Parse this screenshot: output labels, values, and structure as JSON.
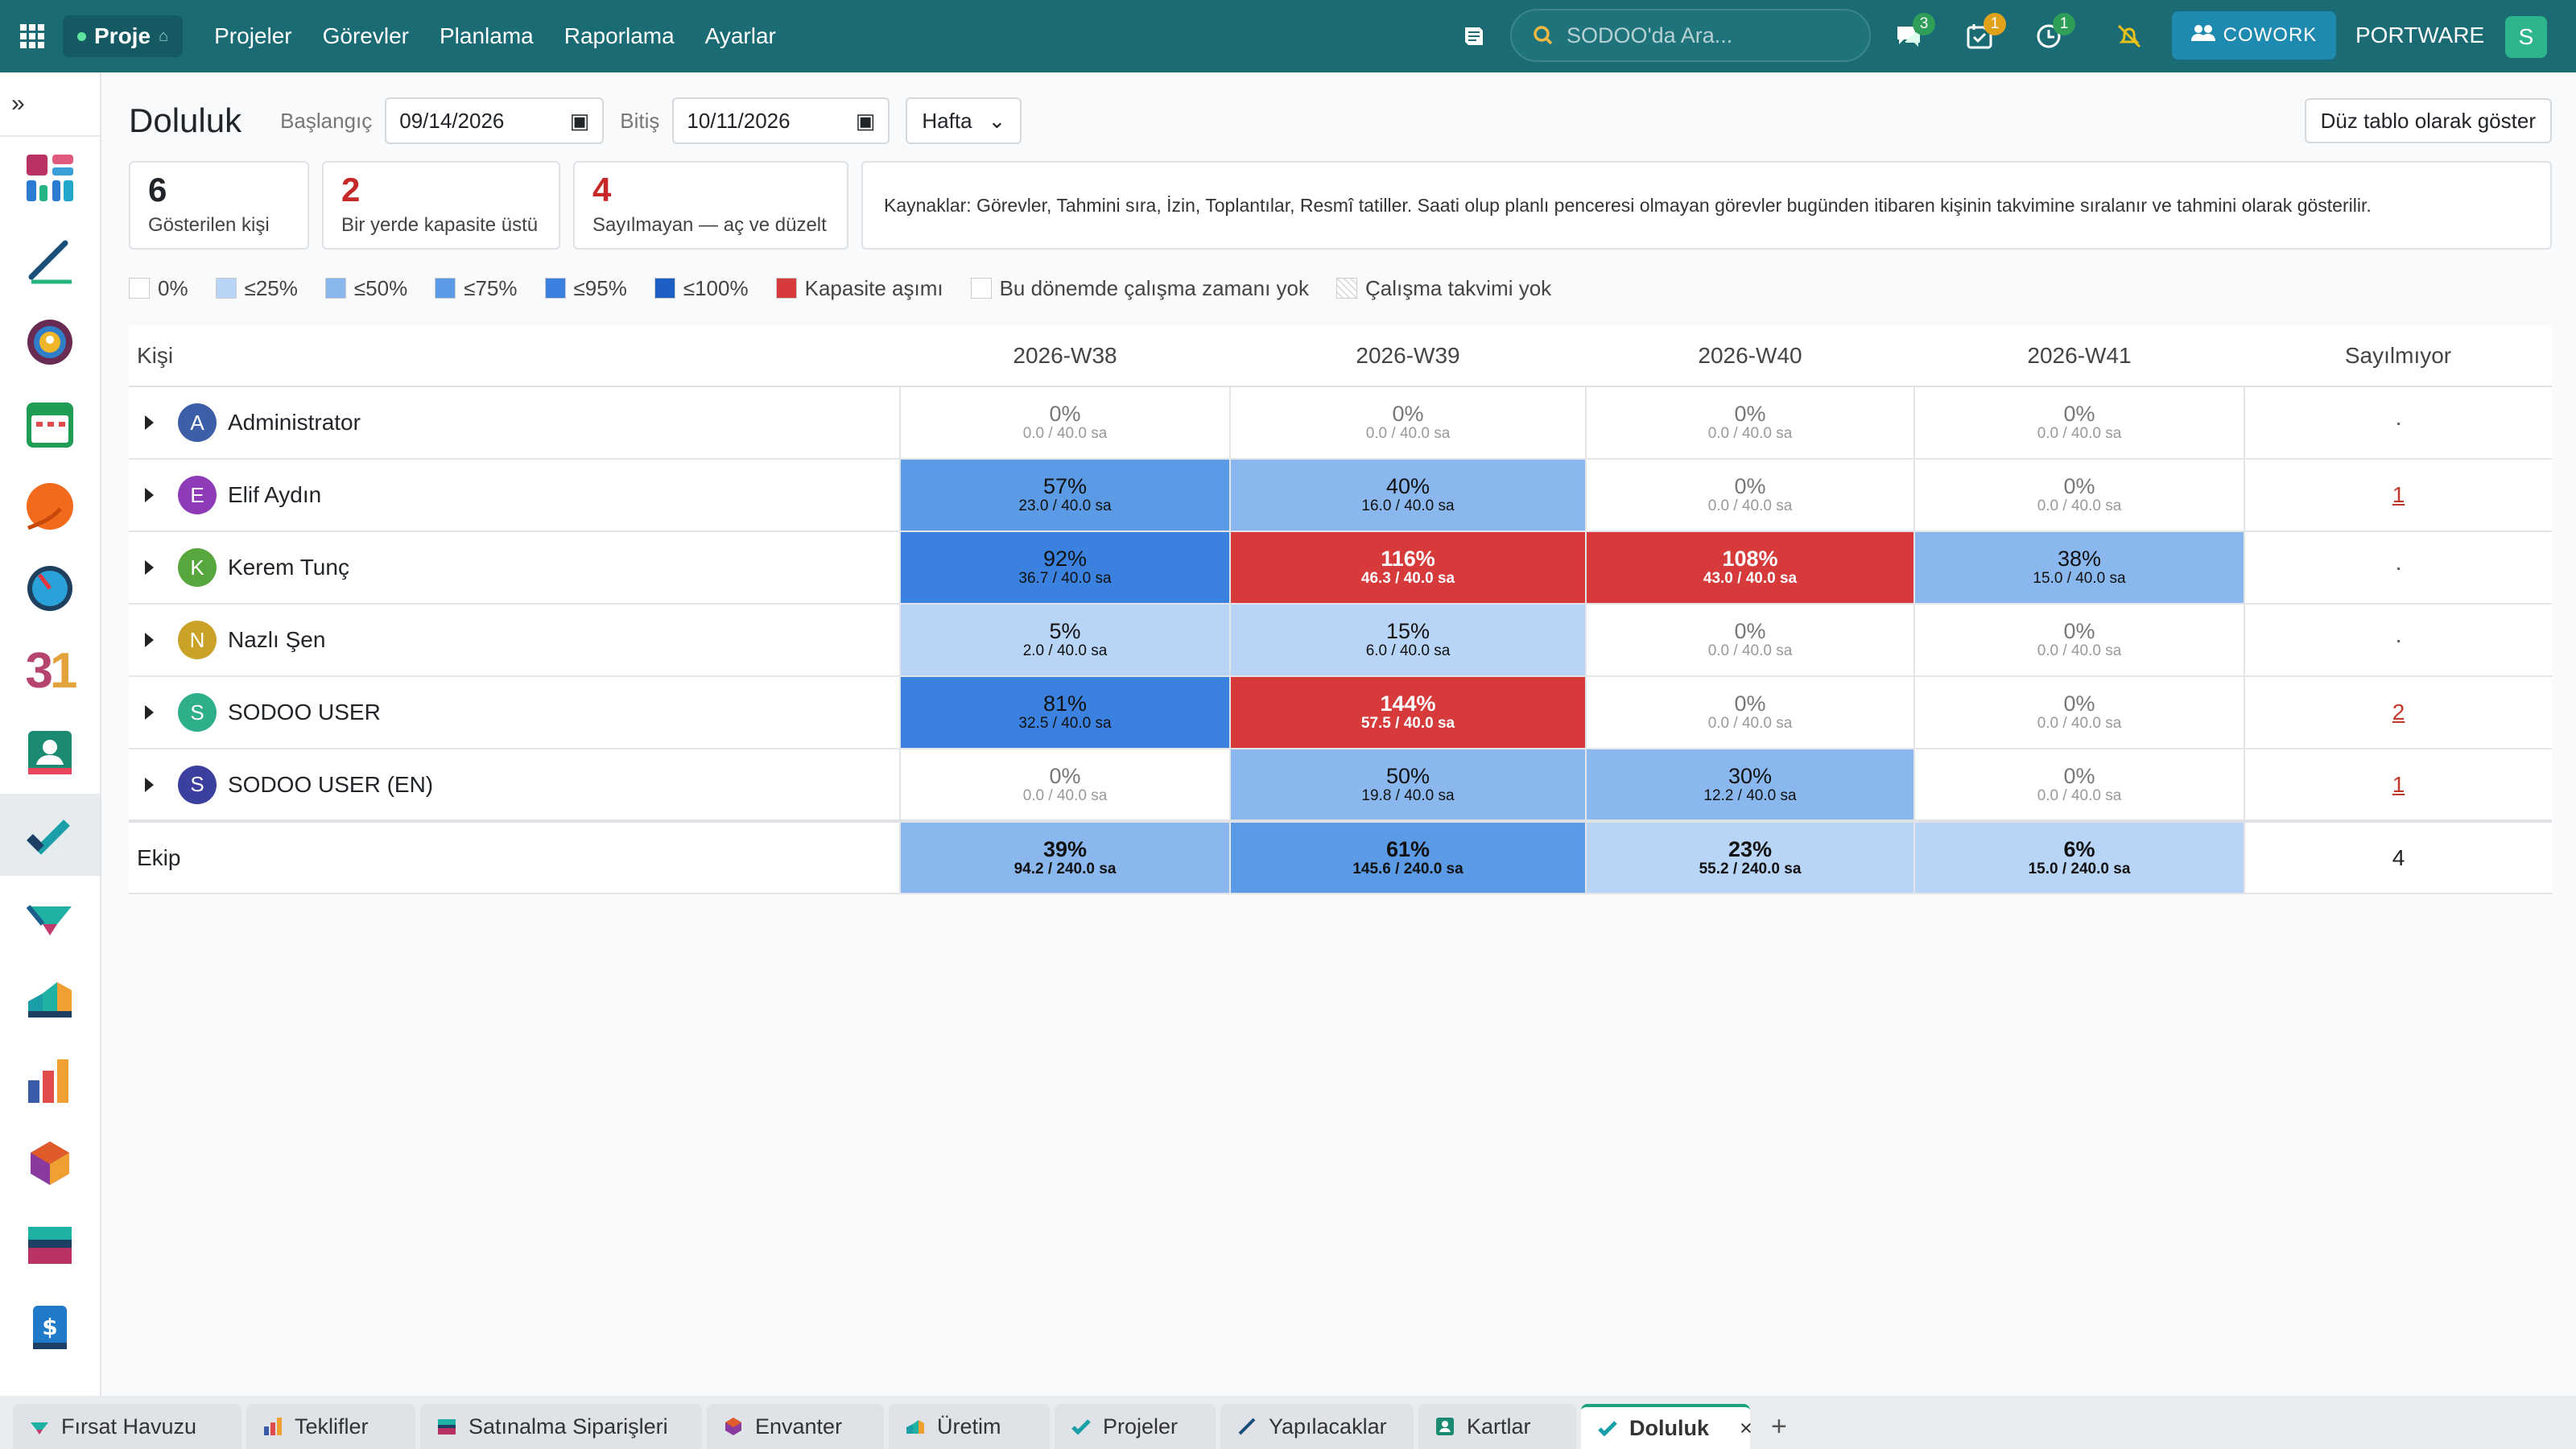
{
  "topbar": {
    "app_name": "Proje",
    "menu": [
      "Projeler",
      "Görevler",
      "Planlama",
      "Raporlama",
      "Ayarlar"
    ],
    "search_placeholder": "SODOO'da Ara...",
    "badges": {
      "chat": "3",
      "activities": "1",
      "clock": "1"
    },
    "cowork_label": "COWORK",
    "company": "PORTWARE",
    "user_initial": "S"
  },
  "page": {
    "title": "Doluluk",
    "start_label": "Başlangıç",
    "start_value": "09/14/2026",
    "end_label": "Bitiş",
    "end_value": "10/11/2026",
    "period": "Hafta",
    "flat_button": "Düz tablo olarak göster"
  },
  "cards": [
    {
      "value": "6",
      "label": "Gösterilen kişi",
      "color": "#111111"
    },
    {
      "value": "2",
      "label": "Bir yerde kapasite üstü",
      "color": "#c62828"
    },
    {
      "value": "4",
      "label": "Sayılmayan — aç ve düzelt",
      "color": "#c62828"
    }
  ],
  "info_text": "Kaynaklar: Görevler, Tahmini sıra, İzin, Toplantılar, Resmî tatiller. Saati olup planlı penceresi olmayan görevler bugünden itibaren kişinin takvimine sıralanır ve tahmini olarak gösterilir.",
  "legend": [
    {
      "label": "0%",
      "color": "#ffffff"
    },
    {
      "label": "≤25%",
      "color": "#b8d4f6"
    },
    {
      "label": "≤50%",
      "color": "#8ab8ee"
    },
    {
      "label": "≤75%",
      "color": "#5b9be6"
    },
    {
      "label": "≤95%",
      "color": "#3b82e0"
    },
    {
      "label": "≤100%",
      "color": "#1d5fc2"
    },
    {
      "label": "Kapasite aşımı",
      "color": "#d63a3a"
    },
    {
      "label": "Bu dönemde çalışma zamanı yok",
      "color": "#ffffff"
    },
    {
      "label": "Çalışma takvimi yok",
      "color": "#eeeeee"
    }
  ],
  "table": {
    "headers": {
      "person": "Kişi",
      "weeks": [
        "2026-W38",
        "2026-W39",
        "2026-W40",
        "2026-W41"
      ],
      "uncounted": "Sayılmıyor"
    },
    "rows": [
      {
        "name": "Administrator",
        "initial": "A",
        "color": "#3d5fa8",
        "cells": [
          {
            "p": "0%",
            "h": "0.0 / 40.0 sa",
            "c": "c0"
          },
          {
            "p": "0%",
            "h": "0.0 / 40.0 sa",
            "c": "c0"
          },
          {
            "p": "0%",
            "h": "0.0 / 40.0 sa",
            "c": "c0"
          },
          {
            "p": "0%",
            "h": "0.0 / 40.0 sa",
            "c": "c0"
          }
        ],
        "uncounted": "·",
        "link": false
      },
      {
        "name": "Elif Aydın",
        "initial": "E",
        "color": "#8e3bb8",
        "cells": [
          {
            "p": "57%",
            "h": "23.0 / 40.0 sa",
            "c": "c75"
          },
          {
            "p": "40%",
            "h": "16.0 / 40.0 sa",
            "c": "c50"
          },
          {
            "p": "0%",
            "h": "0.0 / 40.0 sa",
            "c": "c0"
          },
          {
            "p": "0%",
            "h": "0.0 / 40.0 sa",
            "c": "c0"
          }
        ],
        "uncounted": "1",
        "link": true
      },
      {
        "name": "Kerem Tunç",
        "initial": "K",
        "color": "#58a63e",
        "cells": [
          {
            "p": "92%",
            "h": "36.7 / 40.0 sa",
            "c": "c95"
          },
          {
            "p": "116%",
            "h": "46.3 / 40.0 sa",
            "c": "cover"
          },
          {
            "p": "108%",
            "h": "43.0 / 40.0 sa",
            "c": "cover"
          },
          {
            "p": "38%",
            "h": "15.0 / 40.0 sa",
            "c": "c50"
          }
        ],
        "uncounted": "·",
        "link": false
      },
      {
        "name": "Nazlı Şen",
        "initial": "N",
        "color": "#c9a227",
        "cells": [
          {
            "p": "5%",
            "h": "2.0 / 40.0 sa",
            "c": "c25"
          },
          {
            "p": "15%",
            "h": "6.0 / 40.0 sa",
            "c": "c25"
          },
          {
            "p": "0%",
            "h": "0.0 / 40.0 sa",
            "c": "c0"
          },
          {
            "p": "0%",
            "h": "0.0 / 40.0 sa",
            "c": "c0"
          }
        ],
        "uncounted": "·",
        "link": false
      },
      {
        "name": "SODOO USER",
        "initial": "S",
        "color": "#2fae8a",
        "cells": [
          {
            "p": "81%",
            "h": "32.5 / 40.0 sa",
            "c": "c95"
          },
          {
            "p": "144%",
            "h": "57.5 / 40.0 sa",
            "c": "cover"
          },
          {
            "p": "0%",
            "h": "0.0 / 40.0 sa",
            "c": "c0"
          },
          {
            "p": "0%",
            "h": "0.0 / 40.0 sa",
            "c": "c0"
          }
        ],
        "uncounted": "2",
        "link": true
      },
      {
        "name": "SODOO USER (EN)",
        "initial": "S",
        "color": "#3b3f9e",
        "cells": [
          {
            "p": "0%",
            "h": "0.0 / 40.0 sa",
            "c": "c0"
          },
          {
            "p": "50%",
            "h": "19.8 / 40.0 sa",
            "c": "c50"
          },
          {
            "p": "30%",
            "h": "12.2 / 40.0 sa",
            "c": "c50"
          },
          {
            "p": "0%",
            "h": "0.0 / 40.0 sa",
            "c": "c0"
          }
        ],
        "uncounted": "1",
        "link": true
      }
    ],
    "team": {
      "label": "Ekip",
      "cells": [
        {
          "p": "39%",
          "h": "94.2 / 240.0 sa",
          "c": "c50"
        },
        {
          "p": "61%",
          "h": "145.6 / 240.0 sa",
          "c": "c75"
        },
        {
          "p": "23%",
          "h": "55.2 / 240.0 sa",
          "c": "c25"
        },
        {
          "p": "6%",
          "h": "15.0 / 240.0 sa",
          "c": "c25"
        }
      ],
      "uncounted": "4"
    }
  },
  "bottom_tabs": [
    {
      "label": "Fırsat Havuzu",
      "icon": "crm-icon"
    },
    {
      "label": "Teklifler",
      "icon": "sales-icon"
    },
    {
      "label": "Satınalma Siparişleri",
      "icon": "purchase-icon"
    },
    {
      "label": "Envanter",
      "icon": "inventory-icon"
    },
    {
      "label": "Üretim",
      "icon": "manufacturing-icon"
    },
    {
      "label": "Projeler",
      "icon": "project-icon"
    },
    {
      "label": "Yapılacaklar",
      "icon": "todo-icon"
    },
    {
      "label": "Kartlar",
      "icon": "contacts-icon"
    },
    {
      "label": "Doluluk",
      "icon": "project-icon",
      "active": true
    }
  ],
  "sidebar_apps": [
    "dashboard-icon",
    "todo-icon",
    "discuss-icon",
    "calendar-icon",
    "crm-icon",
    "timesheet-icon",
    "calendar-31-icon",
    "contacts-icon",
    "project-icon",
    "helpdesk-icon",
    "inventory-icon",
    "sales-icon",
    "manufacturing-icon",
    "purchase-icon",
    "invoicing-icon"
  ]
}
